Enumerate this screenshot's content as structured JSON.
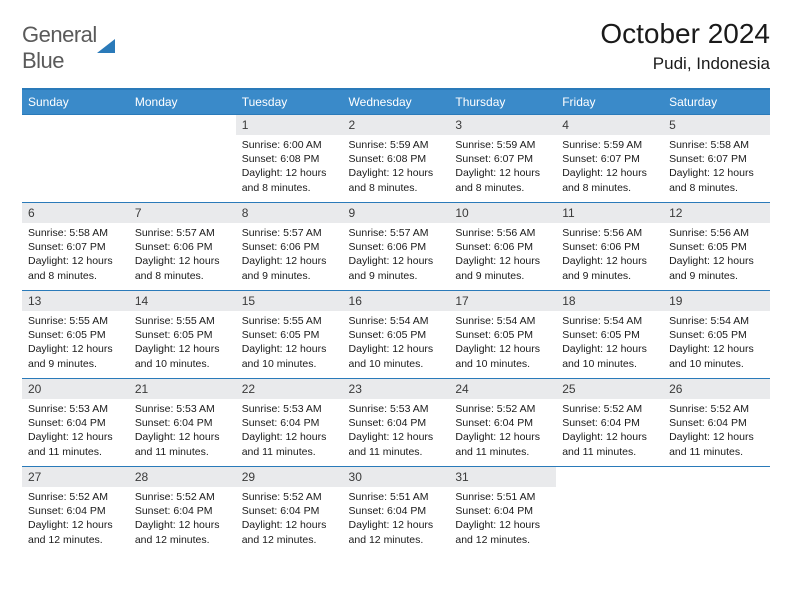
{
  "logo": {
    "line1": "General",
    "line2": "Blue"
  },
  "header": {
    "title": "October 2024",
    "location": "Pudi, Indonesia"
  },
  "colors": {
    "accent": "#3a8ac9",
    "rule": "#2a7ab9",
    "dayBandBg": "#e9eaec"
  },
  "dayHeaders": [
    "Sunday",
    "Monday",
    "Tuesday",
    "Wednesday",
    "Thursday",
    "Friday",
    "Saturday"
  ],
  "weeks": [
    [
      null,
      null,
      {
        "n": "1",
        "sr": "6:00 AM",
        "ss": "6:08 PM",
        "dl": "12 hours and 8 minutes."
      },
      {
        "n": "2",
        "sr": "5:59 AM",
        "ss": "6:08 PM",
        "dl": "12 hours and 8 minutes."
      },
      {
        "n": "3",
        "sr": "5:59 AM",
        "ss": "6:07 PM",
        "dl": "12 hours and 8 minutes."
      },
      {
        "n": "4",
        "sr": "5:59 AM",
        "ss": "6:07 PM",
        "dl": "12 hours and 8 minutes."
      },
      {
        "n": "5",
        "sr": "5:58 AM",
        "ss": "6:07 PM",
        "dl": "12 hours and 8 minutes."
      }
    ],
    [
      {
        "n": "6",
        "sr": "5:58 AM",
        "ss": "6:07 PM",
        "dl": "12 hours and 8 minutes."
      },
      {
        "n": "7",
        "sr": "5:57 AM",
        "ss": "6:06 PM",
        "dl": "12 hours and 8 minutes."
      },
      {
        "n": "8",
        "sr": "5:57 AM",
        "ss": "6:06 PM",
        "dl": "12 hours and 9 minutes."
      },
      {
        "n": "9",
        "sr": "5:57 AM",
        "ss": "6:06 PM",
        "dl": "12 hours and 9 minutes."
      },
      {
        "n": "10",
        "sr": "5:56 AM",
        "ss": "6:06 PM",
        "dl": "12 hours and 9 minutes."
      },
      {
        "n": "11",
        "sr": "5:56 AM",
        "ss": "6:06 PM",
        "dl": "12 hours and 9 minutes."
      },
      {
        "n": "12",
        "sr": "5:56 AM",
        "ss": "6:05 PM",
        "dl": "12 hours and 9 minutes."
      }
    ],
    [
      {
        "n": "13",
        "sr": "5:55 AM",
        "ss": "6:05 PM",
        "dl": "12 hours and 9 minutes."
      },
      {
        "n": "14",
        "sr": "5:55 AM",
        "ss": "6:05 PM",
        "dl": "12 hours and 10 minutes."
      },
      {
        "n": "15",
        "sr": "5:55 AM",
        "ss": "6:05 PM",
        "dl": "12 hours and 10 minutes."
      },
      {
        "n": "16",
        "sr": "5:54 AM",
        "ss": "6:05 PM",
        "dl": "12 hours and 10 minutes."
      },
      {
        "n": "17",
        "sr": "5:54 AM",
        "ss": "6:05 PM",
        "dl": "12 hours and 10 minutes."
      },
      {
        "n": "18",
        "sr": "5:54 AM",
        "ss": "6:05 PM",
        "dl": "12 hours and 10 minutes."
      },
      {
        "n": "19",
        "sr": "5:54 AM",
        "ss": "6:05 PM",
        "dl": "12 hours and 10 minutes."
      }
    ],
    [
      {
        "n": "20",
        "sr": "5:53 AM",
        "ss": "6:04 PM",
        "dl": "12 hours and 11 minutes."
      },
      {
        "n": "21",
        "sr": "5:53 AM",
        "ss": "6:04 PM",
        "dl": "12 hours and 11 minutes."
      },
      {
        "n": "22",
        "sr": "5:53 AM",
        "ss": "6:04 PM",
        "dl": "12 hours and 11 minutes."
      },
      {
        "n": "23",
        "sr": "5:53 AM",
        "ss": "6:04 PM",
        "dl": "12 hours and 11 minutes."
      },
      {
        "n": "24",
        "sr": "5:52 AM",
        "ss": "6:04 PM",
        "dl": "12 hours and 11 minutes."
      },
      {
        "n": "25",
        "sr": "5:52 AM",
        "ss": "6:04 PM",
        "dl": "12 hours and 11 minutes."
      },
      {
        "n": "26",
        "sr": "5:52 AM",
        "ss": "6:04 PM",
        "dl": "12 hours and 11 minutes."
      }
    ],
    [
      {
        "n": "27",
        "sr": "5:52 AM",
        "ss": "6:04 PM",
        "dl": "12 hours and 12 minutes."
      },
      {
        "n": "28",
        "sr": "5:52 AM",
        "ss": "6:04 PM",
        "dl": "12 hours and 12 minutes."
      },
      {
        "n": "29",
        "sr": "5:52 AM",
        "ss": "6:04 PM",
        "dl": "12 hours and 12 minutes."
      },
      {
        "n": "30",
        "sr": "5:51 AM",
        "ss": "6:04 PM",
        "dl": "12 hours and 12 minutes."
      },
      {
        "n": "31",
        "sr": "5:51 AM",
        "ss": "6:04 PM",
        "dl": "12 hours and 12 minutes."
      },
      null,
      null
    ]
  ],
  "labels": {
    "sunrise": "Sunrise: ",
    "sunset": "Sunset: ",
    "daylight": "Daylight: "
  }
}
